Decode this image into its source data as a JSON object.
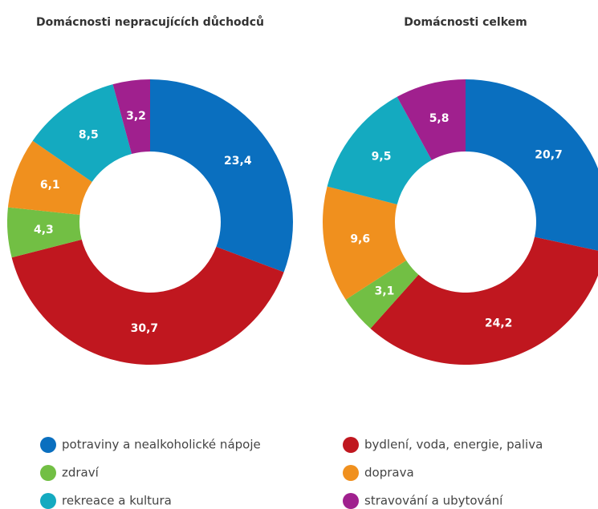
{
  "chart_data": [
    {
      "type": "donut",
      "title": "Domácnosti nepracujících důchodců",
      "categories": [
        "potraviny a nealkoholické nápoje",
        "bydlení, voda, energie, paliva",
        "zdraví",
        "doprava",
        "rekreace a kultura",
        "stravování a ubytování"
      ],
      "colors": [
        "#0a6fbf",
        "#c0171f",
        "#72bf44",
        "#f0901e",
        "#14aac0",
        "#a0208e"
      ],
      "values": [
        23.4,
        30.7,
        4.3,
        6.1,
        8.5,
        3.2
      ],
      "value_labels": [
        "23,4",
        "30,7",
        "4,3",
        "6,1",
        "8,5",
        "3,2"
      ]
    },
    {
      "type": "donut",
      "title": "Domácnosti celkem",
      "categories": [
        "potraviny a nealkoholické nápoje",
        "bydlení, voda, energie, paliva",
        "zdraví",
        "doprava",
        "rekreace a kultura",
        "stravování a ubytování"
      ],
      "colors": [
        "#0a6fbf",
        "#c0171f",
        "#72bf44",
        "#f0901e",
        "#14aac0",
        "#a0208e"
      ],
      "values": [
        20.7,
        24.2,
        3.1,
        9.6,
        9.5,
        5.8
      ],
      "value_labels": [
        "20,7",
        "24,2",
        "3,1",
        "9,6",
        "9,5",
        "5,8"
      ]
    }
  ]
}
